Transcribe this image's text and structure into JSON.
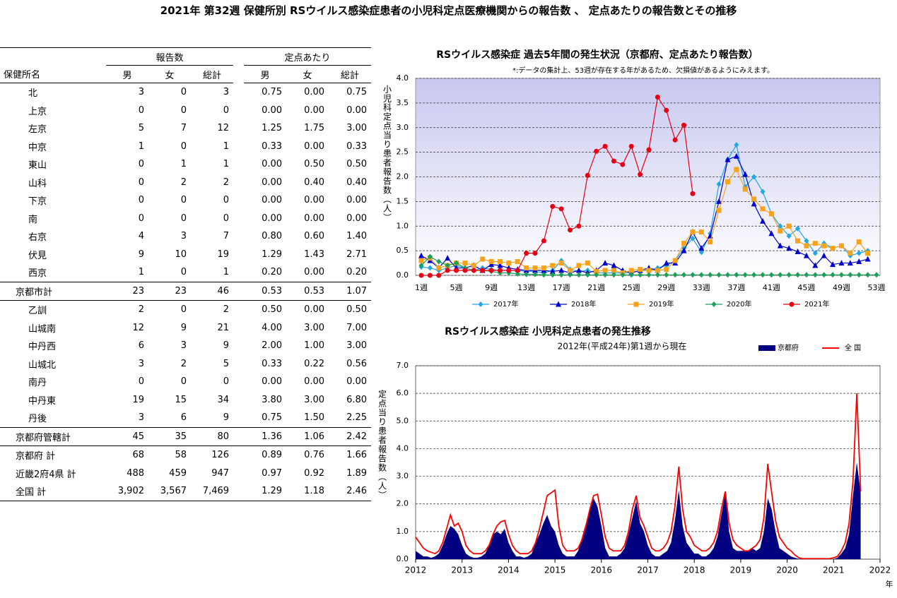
{
  "title": "2021年 第32週 保健所別 RSウイルス感染症患者の小児科定点医療機関からの報告数 、 定点あたりの報告数とその推移",
  "table": {
    "groups": [
      "報告数",
      "定点あたり"
    ],
    "columns": [
      "保健所名",
      "男",
      "女",
      "総計",
      "男",
      "女",
      "総計"
    ],
    "rows": [
      [
        "北",
        "3",
        "0",
        "3",
        "0.75",
        "0.00",
        "0.75"
      ],
      [
        "上京",
        "0",
        "0",
        "0",
        "0.00",
        "0.00",
        "0.00"
      ],
      [
        "左京",
        "5",
        "7",
        "12",
        "1.25",
        "1.75",
        "3.00"
      ],
      [
        "中京",
        "1",
        "0",
        "1",
        "0.33",
        "0.00",
        "0.33"
      ],
      [
        "東山",
        "0",
        "1",
        "1",
        "0.00",
        "0.50",
        "0.50"
      ],
      [
        "山科",
        "0",
        "2",
        "2",
        "0.00",
        "0.40",
        "0.40"
      ],
      [
        "下京",
        "0",
        "0",
        "0",
        "0.00",
        "0.00",
        "0.00"
      ],
      [
        "南",
        "0",
        "0",
        "0",
        "0.00",
        "0.00",
        "0.00"
      ],
      [
        "右京",
        "4",
        "3",
        "7",
        "0.80",
        "0.60",
        "1.40"
      ],
      [
        "伏見",
        "9",
        "10",
        "19",
        "1.29",
        "1.43",
        "2.71"
      ],
      [
        "西京",
        "1",
        "0",
        "1",
        "0.20",
        "0.00",
        "0.20"
      ],
      [
        "京都市計",
        "23",
        "23",
        "46",
        "0.53",
        "0.53",
        "1.07"
      ],
      [
        "乙訓",
        "2",
        "0",
        "2",
        "0.50",
        "0.00",
        "0.50"
      ],
      [
        "山城南",
        "12",
        "9",
        "21",
        "4.00",
        "3.00",
        "7.00"
      ],
      [
        "中丹西",
        "6",
        "3",
        "9",
        "2.00",
        "1.00",
        "3.00"
      ],
      [
        "山城北",
        "3",
        "2",
        "5",
        "0.33",
        "0.22",
        "0.56"
      ],
      [
        "南丹",
        "0",
        "0",
        "0",
        "0.00",
        "0.00",
        "0.00"
      ],
      [
        "中丹東",
        "19",
        "15",
        "34",
        "3.80",
        "3.00",
        "6.80"
      ],
      [
        "丹後",
        "3",
        "6",
        "9",
        "0.75",
        "1.50",
        "2.25"
      ],
      [
        "京都府管轄計",
        "45",
        "35",
        "80",
        "1.36",
        "1.06",
        "2.42"
      ],
      [
        "京都府 計",
        "68",
        "58",
        "126",
        "0.89",
        "0.76",
        "1.66"
      ],
      [
        "近畿2府4県 計",
        "488",
        "459",
        "947",
        "0.97",
        "0.92",
        "1.89"
      ],
      [
        "全国 計",
        "3,902",
        "3,567",
        "7,469",
        "1.29",
        "1.18",
        "2.46"
      ]
    ]
  },
  "chart_data": [
    {
      "type": "line",
      "title": "RSウイルス感染症 過去5年間の発生状況（京都府、定点あたり報告数）",
      "subtitle": "*:データの集計上、53週が存在する年があるため、欠損値があるようにみえます。",
      "ylabel": "小児科定点当り患者報告数（人）",
      "categories": [
        "1週",
        null,
        null,
        null,
        "5週",
        null,
        null,
        null,
        "9週",
        null,
        null,
        null,
        "13週",
        null,
        null,
        null,
        "17週",
        null,
        null,
        null,
        "21週",
        null,
        null,
        null,
        "25週",
        null,
        null,
        null,
        "29週",
        null,
        null,
        null,
        "33週",
        null,
        null,
        null,
        "37週",
        null,
        null,
        null,
        "41週",
        null,
        null,
        null,
        "45週",
        null,
        null,
        null,
        "49週",
        null,
        null,
        null,
        "53週"
      ],
      "ylim": [
        0,
        4
      ],
      "yticks": [
        {
          "value": 0,
          "label": "0.0"
        },
        {
          "value": 0.5,
          "label": "0.5"
        },
        {
          "value": 1,
          "label": "1.0"
        },
        {
          "value": 1.5,
          "label": "1.5"
        },
        {
          "value": 2,
          "label": "2.0"
        },
        {
          "value": 2.5,
          "label": "2.5"
        },
        {
          "value": 3,
          "label": "3.0"
        },
        {
          "value": 3.5,
          "label": "3.5"
        },
        {
          "value": 4,
          "label": "4.0"
        }
      ],
      "grid": true,
      "series": [
        {
          "name": "2017年",
          "color": "#1fa7e6",
          "marker": "diamond",
          "values": [
            0.17,
            0.15,
            0.1,
            0.15,
            0.2,
            0.15,
            0.1,
            0.15,
            0.12,
            0.1,
            0.1,
            0.1,
            0.08,
            0.08,
            0.05,
            0.1,
            0.3,
            0.12,
            0.08,
            0.1,
            0.05,
            0.05,
            0.05,
            0.05,
            0.05,
            0.1,
            0.1,
            0.15,
            0.2,
            0.3,
            0.55,
            0.75,
            0.47,
            0.85,
            1.85,
            2.35,
            2.65,
            1.8,
            2.0,
            1.7,
            1.25,
            1.0,
            0.8,
            0.95,
            0.7,
            0.45,
            0.65,
            0.55,
            0.6,
            0.4,
            0.45,
            0.5,
            null
          ]
        },
        {
          "name": "2018年",
          "color": "#0000cc",
          "marker": "triangle",
          "values": [
            0.4,
            0.3,
            0.15,
            0.35,
            0.15,
            0.15,
            0.2,
            0.1,
            0.22,
            0.2,
            0.15,
            0.12,
            0.1,
            0.1,
            0.1,
            0.08,
            0.1,
            0.05,
            0.1,
            0.05,
            0.1,
            0.25,
            0.2,
            0.1,
            0.05,
            0.1,
            0.15,
            0.1,
            0.25,
            0.25,
            0.5,
            0.88,
            0.55,
            0.8,
            1.5,
            2.35,
            2.42,
            2.05,
            1.45,
            1.1,
            0.85,
            0.6,
            0.55,
            0.48,
            0.4,
            0.2,
            0.4,
            0.22,
            0.25,
            0.25,
            0.28,
            0.33,
            null
          ]
        },
        {
          "name": "2019年",
          "color": "#f7a21b",
          "marker": "square",
          "values": [
            0.3,
            0.35,
            0.15,
            0.2,
            0.25,
            0.25,
            0.2,
            0.33,
            0.28,
            0.28,
            0.25,
            0.28,
            0.15,
            0.15,
            0.15,
            0.2,
            0.25,
            0.1,
            0.2,
            0.25,
            0.08,
            0.1,
            0.1,
            0.05,
            0.1,
            0.12,
            0.1,
            0.1,
            0.12,
            0.3,
            0.65,
            0.88,
            0.88,
            0.68,
            1.32,
            1.9,
            2.15,
            1.75,
            1.55,
            1.35,
            1.25,
            0.9,
            1.0,
            0.7,
            0.6,
            0.65,
            0.6,
            0.55,
            0.6,
            0.45,
            0.68,
            0.45,
            null
          ]
        },
        {
          "name": "2020年",
          "color": "#1aa05a",
          "marker": "diamond",
          "values": [
            0.2,
            0.38,
            0.28,
            0.2,
            0.25,
            0.15,
            0.1,
            0.1,
            0.08,
            0.05,
            0.05,
            0.03,
            0.02,
            0.02,
            0.01,
            0.01,
            0.01,
            0.01,
            0.01,
            0.01,
            0.01,
            0.01,
            0.01,
            0.01,
            0.01,
            0.01,
            0.01,
            0.01,
            0.01,
            0.01,
            0.01,
            0.01,
            0.01,
            0.01,
            0.01,
            0.01,
            0.01,
            0.01,
            0.01,
            0.01,
            0.01,
            0.01,
            0.01,
            0.01,
            0.01,
            0.01,
            0.01,
            0.01,
            0.01,
            0.01,
            0.01,
            0.01,
            0.01
          ]
        },
        {
          "name": "2021年",
          "color": "#e60012",
          "marker": "circle",
          "values": [
            0,
            0,
            0,
            0.1,
            0.1,
            0.1,
            0.1,
            0.1,
            0.1,
            0.1,
            0.1,
            0.1,
            0.45,
            0.45,
            0.7,
            1.4,
            1.35,
            0.92,
            1.0,
            2.03,
            2.52,
            2.62,
            2.32,
            2.25,
            2.62,
            2.05,
            2.55,
            3.62,
            3.35,
            2.75,
            3.05,
            1.66,
            null,
            null,
            null,
            null,
            null,
            null,
            null,
            null,
            null,
            null,
            null,
            null,
            null,
            null,
            null,
            null,
            null,
            null,
            null,
            null,
            null
          ]
        }
      ]
    },
    {
      "type": "line",
      "title": "RSウイルス感染症 小児科定点患者の発生推移",
      "subtitle": "2012年(平成24年)第1週から現在",
      "ylabel": "定点当り患者報告数（人）",
      "xlabel": "年",
      "xlim": [
        2012,
        2022
      ],
      "xticks": [
        2012,
        2013,
        2014,
        2015,
        2016,
        2017,
        2018,
        2019,
        2020,
        2021,
        2022
      ],
      "ylim": [
        0,
        7
      ],
      "yticks": [
        {
          "value": 0,
          "label": "0.0"
        },
        {
          "value": 1,
          "label": "1.0"
        },
        {
          "value": 2,
          "label": "2.0"
        },
        {
          "value": 3,
          "label": "3.0"
        },
        {
          "value": 4,
          "label": "4.0"
        },
        {
          "value": 5,
          "label": "5.0"
        },
        {
          "value": 6,
          "label": "6.0"
        },
        {
          "value": 7,
          "label": "7.0"
        }
      ],
      "grid": true,
      "x": [
        2012,
        2012.083,
        2012.167,
        2012.25,
        2012.333,
        2012.417,
        2012.5,
        2012.583,
        2012.667,
        2012.75,
        2012.833,
        2012.917,
        2013,
        2013.083,
        2013.167,
        2013.25,
        2013.333,
        2013.417,
        2013.5,
        2013.583,
        2013.667,
        2013.75,
        2013.833,
        2013.917,
        2014,
        2014.083,
        2014.167,
        2014.25,
        2014.333,
        2014.417,
        2014.5,
        2014.583,
        2014.667,
        2014.75,
        2014.833,
        2014.917,
        2015,
        2015.083,
        2015.167,
        2015.25,
        2015.333,
        2015.417,
        2015.5,
        2015.583,
        2015.667,
        2015.75,
        2015.833,
        2015.917,
        2016,
        2016.083,
        2016.167,
        2016.25,
        2016.333,
        2016.417,
        2016.5,
        2016.583,
        2016.667,
        2016.75,
        2016.833,
        2016.917,
        2017,
        2017.083,
        2017.167,
        2017.25,
        2017.333,
        2017.417,
        2017.5,
        2017.583,
        2017.667,
        2017.75,
        2017.833,
        2017.917,
        2018,
        2018.083,
        2018.167,
        2018.25,
        2018.333,
        2018.417,
        2018.5,
        2018.583,
        2018.667,
        2018.75,
        2018.833,
        2018.917,
        2019,
        2019.083,
        2019.167,
        2019.25,
        2019.333,
        2019.417,
        2019.5,
        2019.583,
        2019.667,
        2019.75,
        2019.833,
        2019.917,
        2020,
        2020.083,
        2020.167,
        2020.25,
        2020.333,
        2020.417,
        2020.5,
        2020.583,
        2020.667,
        2020.75,
        2020.833,
        2020.917,
        2021,
        2021.083,
        2021.167,
        2021.25,
        2021.333,
        2021.417,
        2021.5,
        2021.583
      ],
      "series": [
        {
          "name": "京都府",
          "type": "area",
          "color": "#000080",
          "values": [
            0.3,
            0.2,
            0.1,
            0.1,
            0.05,
            0.1,
            0.2,
            0.5,
            0.9,
            1.2,
            1.1,
            0.9,
            0.5,
            0.2,
            0.1,
            0.05,
            0.05,
            0.1,
            0.2,
            0.5,
            0.9,
            1.0,
            0.9,
            1.1,
            0.6,
            0.3,
            0.1,
            0.1,
            0.05,
            0.1,
            0.2,
            0.6,
            0.9,
            1.3,
            1.6,
            1.2,
            1.0,
            0.5,
            0.2,
            0.1,
            0.1,
            0.1,
            0.3,
            0.8,
            1.3,
            1.8,
            2.2,
            1.9,
            1.2,
            0.4,
            0.1,
            0.1,
            0.1,
            0.2,
            0.4,
            0.9,
            1.5,
            2.1,
            1.3,
            1.0,
            0.5,
            0.2,
            0.1,
            0.1,
            0.2,
            0.3,
            0.6,
            1.4,
            2.5,
            1.2,
            0.6,
            0.4,
            0.2,
            0.2,
            0.1,
            0.1,
            0.2,
            0.4,
            0.8,
            1.6,
            2.4,
            1.0,
            0.4,
            0.3,
            0.3,
            0.3,
            0.3,
            0.4,
            0.3,
            0.4,
            1.0,
            2.2,
            1.8,
            1.0,
            0.4,
            0.3,
            0.2,
            0.1,
            0.05,
            0.01,
            0,
            0,
            0,
            0,
            0,
            0,
            0,
            0,
            0,
            0.05,
            0.2,
            0.4,
            0.9,
            2.3,
            3.5,
            2.4
          ]
        },
        {
          "name": "全 国",
          "type": "line",
          "color": "#ff0000",
          "values": [
            0.8,
            0.6,
            0.4,
            0.3,
            0.25,
            0.2,
            0.3,
            0.6,
            1.1,
            1.6,
            1.2,
            1.3,
            1.0,
            0.5,
            0.3,
            0.2,
            0.2,
            0.2,
            0.3,
            0.5,
            0.9,
            1.2,
            1.35,
            1.4,
            0.9,
            0.5,
            0.3,
            0.2,
            0.2,
            0.2,
            0.3,
            0.6,
            1.1,
            1.7,
            2.3,
            2.4,
            2.5,
            1.2,
            0.5,
            0.3,
            0.3,
            0.3,
            0.4,
            0.7,
            1.2,
            1.8,
            2.3,
            2.35,
            1.6,
            0.8,
            0.4,
            0.3,
            0.3,
            0.3,
            0.5,
            1.0,
            1.8,
            2.3,
            1.5,
            1.2,
            0.8,
            0.4,
            0.3,
            0.3,
            0.4,
            0.6,
            1.0,
            1.9,
            3.35,
            1.8,
            1.0,
            0.8,
            0.5,
            0.4,
            0.3,
            0.3,
            0.4,
            0.6,
            1.0,
            1.8,
            2.45,
            1.3,
            0.7,
            0.5,
            0.4,
            0.3,
            0.3,
            0.4,
            0.5,
            0.7,
            1.5,
            3.45,
            2.4,
            1.4,
            0.8,
            0.6,
            0.4,
            0.3,
            0.15,
            0.05,
            0.02,
            0.02,
            0.02,
            0.02,
            0.02,
            0.02,
            0.02,
            0.02,
            0.05,
            0.1,
            0.3,
            0.6,
            1.3,
            2.8,
            6.0,
            2.45
          ]
        }
      ]
    }
  ]
}
